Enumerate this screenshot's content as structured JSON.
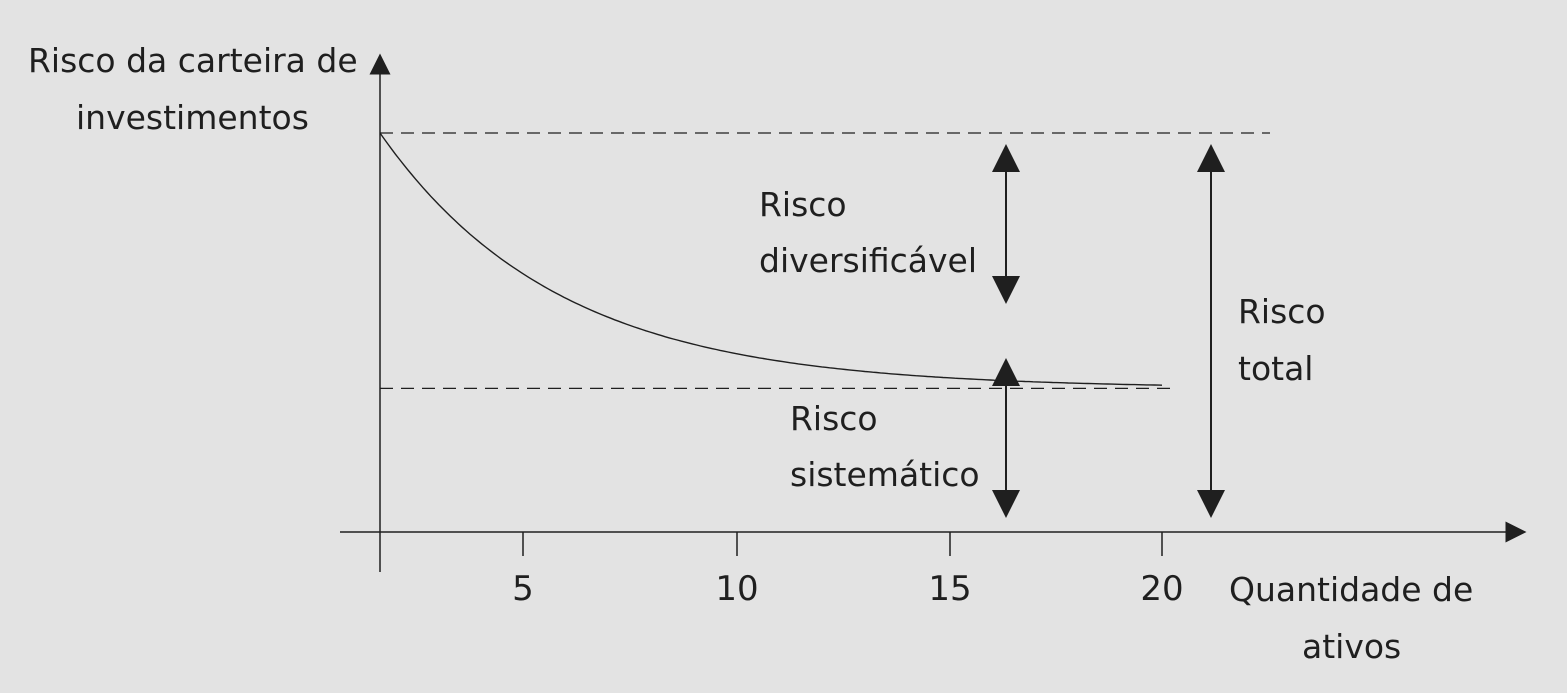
{
  "chart_data": {
    "type": "line",
    "title": "",
    "ylabel_lines": [
      "Risco da carteira de",
      "investimentos"
    ],
    "xlabel_lines": [
      "Quantidade de",
      "ativos"
    ],
    "x_ticks": [
      5,
      10,
      15,
      20
    ],
    "series": [
      {
        "x": [
          1.6,
          3,
          5,
          7,
          10,
          13,
          16,
          18,
          20
        ],
        "y": [
          1.0,
          0.86,
          0.7,
          0.58,
          0.46,
          0.4,
          0.37,
          0.36,
          0.36
        ]
      }
    ],
    "reference_lines": {
      "total_risk_level": 1.0,
      "systematic_risk_level": 0.36
    },
    "annotations": {
      "diversifiable": [
        "Risco",
        "diversificável"
      ],
      "systematic": [
        "Risco",
        "sistemático"
      ],
      "total": [
        "Risco",
        "total"
      ]
    },
    "grid": false,
    "legend": "none"
  }
}
